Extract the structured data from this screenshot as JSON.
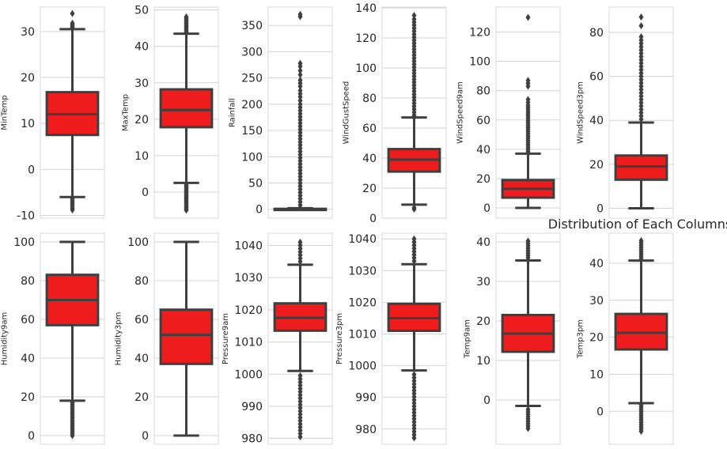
{
  "figure_title": "Distribution of Each Columns",
  "colors": {
    "box_fill": "#ee1c1c",
    "line": "#3f3f3f",
    "grid": "#d3d3d3",
    "frame": "#d9d9d9"
  },
  "chart_data": [
    {
      "type": "box",
      "ylabel": "MinTemp",
      "ylim": [
        -10.6,
        35.3
      ],
      "ticks": [
        -10,
        0,
        10,
        20,
        30
      ],
      "stats": {
        "whislo": -6,
        "q1": 7.5,
        "median": 12,
        "q3": 16.8,
        "whishi": 30.5
      },
      "fliers": [
        -8.8,
        -8.4,
        -8.0,
        -7.6,
        -7.2,
        -6.8,
        -6.4,
        30.9,
        31.2,
        31.5,
        31.8,
        33.9
      ]
    },
    {
      "type": "box",
      "ylabel": "MaxTemp",
      "ylim": [
        -7.2,
        50.8
      ],
      "ticks": [
        0,
        10,
        20,
        30,
        40,
        50
      ],
      "stats": {
        "whislo": 2.5,
        "q1": 17.8,
        "median": 22.5,
        "q3": 28.2,
        "whishi": 43.5
      },
      "fliers": [
        -5,
        -4.6,
        -4.2,
        -3.8,
        -3.4,
        -3,
        -2.6,
        -2.2,
        -1.8,
        -1.4,
        -1,
        -0.6,
        -0.2,
        0.2,
        0.6,
        1,
        1.4,
        1.8,
        2.2,
        44,
        44.4,
        44.8,
        45.2,
        45.6,
        46,
        46.4,
        46.8,
        47.2,
        47.6,
        48.1
      ]
    },
    {
      "type": "box",
      "ylabel": "Rainfall",
      "ylim": [
        -17,
        385
      ],
      "ticks": [
        0,
        50,
        100,
        150,
        200,
        250,
        300,
        350
      ],
      "stats": {
        "whislo": 0,
        "q1": 0,
        "median": 0,
        "q3": 0.8,
        "whishi": 2
      },
      "fliers": [
        3,
        8,
        14,
        20,
        26,
        32,
        38,
        44,
        50,
        56,
        62,
        68,
        74,
        80,
        86,
        92,
        98,
        104,
        110,
        116,
        122,
        128,
        134,
        140,
        146,
        152,
        158,
        164,
        170,
        176,
        182,
        188,
        194,
        200,
        207,
        214,
        220,
        226,
        234,
        240,
        246,
        256,
        264,
        272,
        278,
        367,
        371
      ]
    },
    {
      "type": "box",
      "ylabel": "WindGustSpeed",
      "ylim": [
        0,
        140.5
      ],
      "ticks": [
        0,
        20,
        40,
        60,
        80,
        100,
        120,
        140
      ],
      "stats": {
        "whislo": 9,
        "q1": 31,
        "median": 39,
        "q3": 46,
        "whishi": 67
      },
      "fliers": [
        6,
        7,
        68.5,
        70.5,
        72.5,
        74.5,
        76.5,
        78.5,
        80.5,
        82.5,
        84.5,
        86.5,
        88.5,
        90.5,
        92.5,
        94.5,
        96.5,
        98.5,
        100.5,
        102.5,
        104.5,
        106.5,
        108.5,
        110.5,
        112.5,
        114.5,
        116.5,
        118.5,
        120.5,
        122.5,
        124.5,
        126.5,
        128.5,
        130.5,
        132.5,
        135
      ]
    },
    {
      "type": "box",
      "ylabel": "WindSpeed9am",
      "ylim": [
        -7,
        137
      ],
      "ticks": [
        0,
        20,
        40,
        60,
        80,
        100,
        120
      ],
      "stats": {
        "whislo": 0,
        "q1": 7,
        "median": 13,
        "q3": 19,
        "whishi": 37
      },
      "fliers": [
        38.5,
        40,
        41.5,
        43,
        44.5,
        46,
        47.5,
        49,
        50.5,
        52,
        53.5,
        55,
        56.5,
        58,
        59.5,
        61,
        62.5,
        64,
        65.5,
        67,
        68.5,
        70,
        72,
        74,
        83,
        85,
        87,
        130
      ]
    },
    {
      "type": "box",
      "ylabel": "WindSpeed3pm",
      "ylim": [
        -4.5,
        91.5
      ],
      "ticks": [
        0,
        20,
        40,
        60,
        80
      ],
      "stats": {
        "whislo": 0,
        "q1": 13,
        "median": 19,
        "q3": 24,
        "whishi": 39
      },
      "fliers": [
        40.5,
        42,
        43.5,
        45,
        46.5,
        48,
        49.5,
        51,
        52.5,
        54,
        55.5,
        57,
        58.5,
        60,
        61.5,
        63,
        64.5,
        66,
        67.5,
        69,
        70.5,
        72,
        73.5,
        75,
        76.5,
        78,
        83,
        87
      ]
    },
    {
      "type": "box",
      "ylabel": "Humidity9am",
      "ylim": [
        -4.5,
        104.5
      ],
      "ticks": [
        0,
        20,
        40,
        60,
        80,
        100
      ],
      "stats": {
        "whislo": 18,
        "q1": 57,
        "median": 70,
        "q3": 83,
        "whishi": 100
      },
      "fliers": [
        0,
        1,
        2,
        3,
        4,
        5,
        6,
        7,
        8,
        9,
        10,
        11,
        12,
        13,
        14,
        15,
        16,
        17
      ]
    },
    {
      "type": "box",
      "ylabel": "Humidity3pm",
      "ylim": [
        -4.5,
        104.5
      ],
      "ticks": [
        0,
        20,
        40,
        60,
        80,
        100
      ],
      "stats": {
        "whislo": 0,
        "q1": 37,
        "median": 52,
        "q3": 65,
        "whishi": 100
      },
      "fliers": []
    },
    {
      "type": "box",
      "ylabel": "Pressure9am",
      "ylim": [
        978.2,
        1043.8
      ],
      "ticks": [
        980,
        990,
        1000,
        1010,
        1020,
        1030,
        1040
      ],
      "stats": {
        "whislo": 1001,
        "q1": 1013.5,
        "median": 1017.5,
        "q3": 1022,
        "whishi": 1034
      },
      "fliers": [
        980.5,
        981.5,
        982.5,
        983.5,
        984.5,
        985.5,
        986.5,
        987.5,
        988.5,
        989.5,
        990.5,
        991.5,
        992.5,
        993.5,
        994.5,
        995.5,
        996.5,
        997.5,
        998.5,
        999.5,
        1035,
        1036,
        1037,
        1038,
        1039,
        1040,
        1041
      ]
    },
    {
      "type": "box",
      "ylabel": "Pressure3pm",
      "ylim": [
        975.2,
        1041.8
      ],
      "ticks": [
        980,
        990,
        1000,
        1010,
        1020,
        1030,
        1040
      ],
      "stats": {
        "whislo": 998.5,
        "q1": 1011,
        "median": 1015,
        "q3": 1019.5,
        "whishi": 1032
      },
      "fliers": [
        977.2,
        978.2,
        979.2,
        980.2,
        981.2,
        982.2,
        983.2,
        984.2,
        985.2,
        986.2,
        987.2,
        988.2,
        989.2,
        990.2,
        991.2,
        992.2,
        993.2,
        994.2,
        995.2,
        996.2,
        997.2,
        1033,
        1034,
        1035,
        1036,
        1037,
        1038,
        1039,
        1040
      ]
    },
    {
      "type": "box",
      "ylabel": "Temp9am",
      "ylim": [
        -11.2,
        42.2
      ],
      "ticks": [
        0,
        10,
        20,
        30,
        40
      ],
      "stats": {
        "whislo": -1.5,
        "q1": 12.2,
        "median": 16.8,
        "q3": 21.5,
        "whishi": 35.3
      },
      "fliers": [
        -7.2,
        -6.6,
        -6,
        -5.4,
        -4.8,
        -4.2,
        -3.6,
        -3,
        -2.4,
        36,
        36.6,
        37.2,
        37.8,
        38.4,
        39,
        39.6,
        40.2
      ]
    },
    {
      "type": "box",
      "ylabel": "Temp3pm",
      "ylim": [
        -8.9,
        48.1
      ],
      "ticks": [
        0,
        10,
        20,
        30,
        40
      ],
      "stats": {
        "whislo": 2.2,
        "q1": 16.7,
        "median": 21.2,
        "q3": 26.3,
        "whishi": 40.7
      },
      "fliers": [
        -5.4,
        -4.8,
        -4.2,
        -3.6,
        -3,
        -2.4,
        -1.8,
        -1.2,
        -0.6,
        0,
        0.6,
        1.2,
        1.8,
        41.3,
        41.9,
        42.5,
        43.1,
        43.7,
        44.3,
        44.9,
        45.5,
        46.1
      ]
    }
  ]
}
